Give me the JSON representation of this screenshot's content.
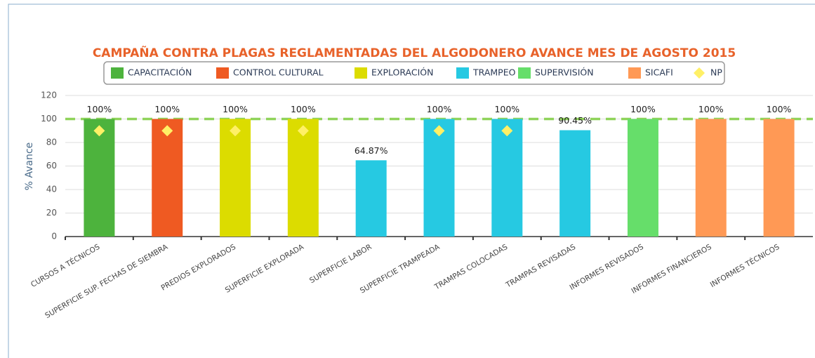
{
  "chart_data": {
    "type": "bar",
    "title": "CAMPAÑA CONTRA PLAGAS REGLAMENTADAS DEL ALGODONERO AVANCE MES DE AGOSTO 2015",
    "ylabel": "% Avance",
    "categories": [
      "CURSOS A TÉCNICOS",
      "SUPERFICIE SUP. FECHAS DE SIEMBRA",
      "PREDIOS EXPLORADOS",
      "SUPERFICIE EXPLORADA",
      "SUPERFICIE LABOR",
      "SUPERFICIE TRAMPEADA",
      "TRAMPAS COLOCADAS",
      "TRAMPAS REVISADAS",
      "INFORMES REVISADOS",
      "INFORMES FINANCIEROS",
      "INFORMES TÉCNICOS"
    ],
    "series": [
      {
        "name": "CAPACITACIÓN",
        "color": "#4db33d",
        "values": [
          100,
          null,
          null,
          null,
          null,
          null,
          null,
          null,
          null,
          null,
          null
        ],
        "value_labels": [
          "100%",
          null,
          null,
          null,
          null,
          null,
          null,
          null,
          null,
          null,
          null
        ]
      },
      {
        "name": "CONTROL CULTURAL",
        "color": "#ef5a22",
        "values": [
          null,
          100,
          null,
          null,
          null,
          null,
          null,
          null,
          null,
          null,
          null
        ],
        "value_labels": [
          null,
          "100%",
          null,
          null,
          null,
          null,
          null,
          null,
          null,
          null,
          null
        ]
      },
      {
        "name": "EXPLORACIÓN",
        "color": "#dcdc00",
        "values": [
          null,
          null,
          100,
          100,
          null,
          null,
          null,
          null,
          null,
          null,
          null
        ],
        "value_labels": [
          null,
          null,
          "100%",
          "100%",
          null,
          null,
          null,
          null,
          null,
          null,
          null
        ]
      },
      {
        "name": "TRAMPEO",
        "color": "#26c9e2",
        "values": [
          null,
          null,
          null,
          null,
          64.87,
          100,
          100,
          90.45,
          null,
          null,
          null
        ],
        "value_labels": [
          null,
          null,
          null,
          null,
          "64.87%",
          "100%",
          "100%",
          "90.45%",
          null,
          null,
          null
        ]
      },
      {
        "name": "SUPERVISIÓN",
        "color": "#66de6a",
        "values": [
          null,
          null,
          null,
          null,
          null,
          null,
          null,
          null,
          100,
          null,
          null
        ],
        "value_labels": [
          null,
          null,
          null,
          null,
          null,
          null,
          null,
          null,
          "100%",
          null,
          null
        ]
      },
      {
        "name": "SICAFI",
        "color": "#ff9955",
        "values": [
          null,
          null,
          null,
          null,
          null,
          null,
          null,
          null,
          null,
          100,
          100
        ],
        "value_labels": [
          null,
          null,
          null,
          null,
          null,
          null,
          null,
          null,
          null,
          "100%",
          "100%"
        ]
      },
      {
        "name": "NP",
        "color": "#fff066",
        "type": "scatter",
        "marker": "diamond",
        "values": [
          90,
          90,
          90,
          90,
          null,
          90,
          90,
          null,
          null,
          null,
          null
        ]
      }
    ],
    "reference_line": 100,
    "ylim": [
      0,
      120
    ],
    "yticks": [
      0,
      20,
      40,
      60,
      80,
      100,
      120
    ],
    "grid": true
  }
}
